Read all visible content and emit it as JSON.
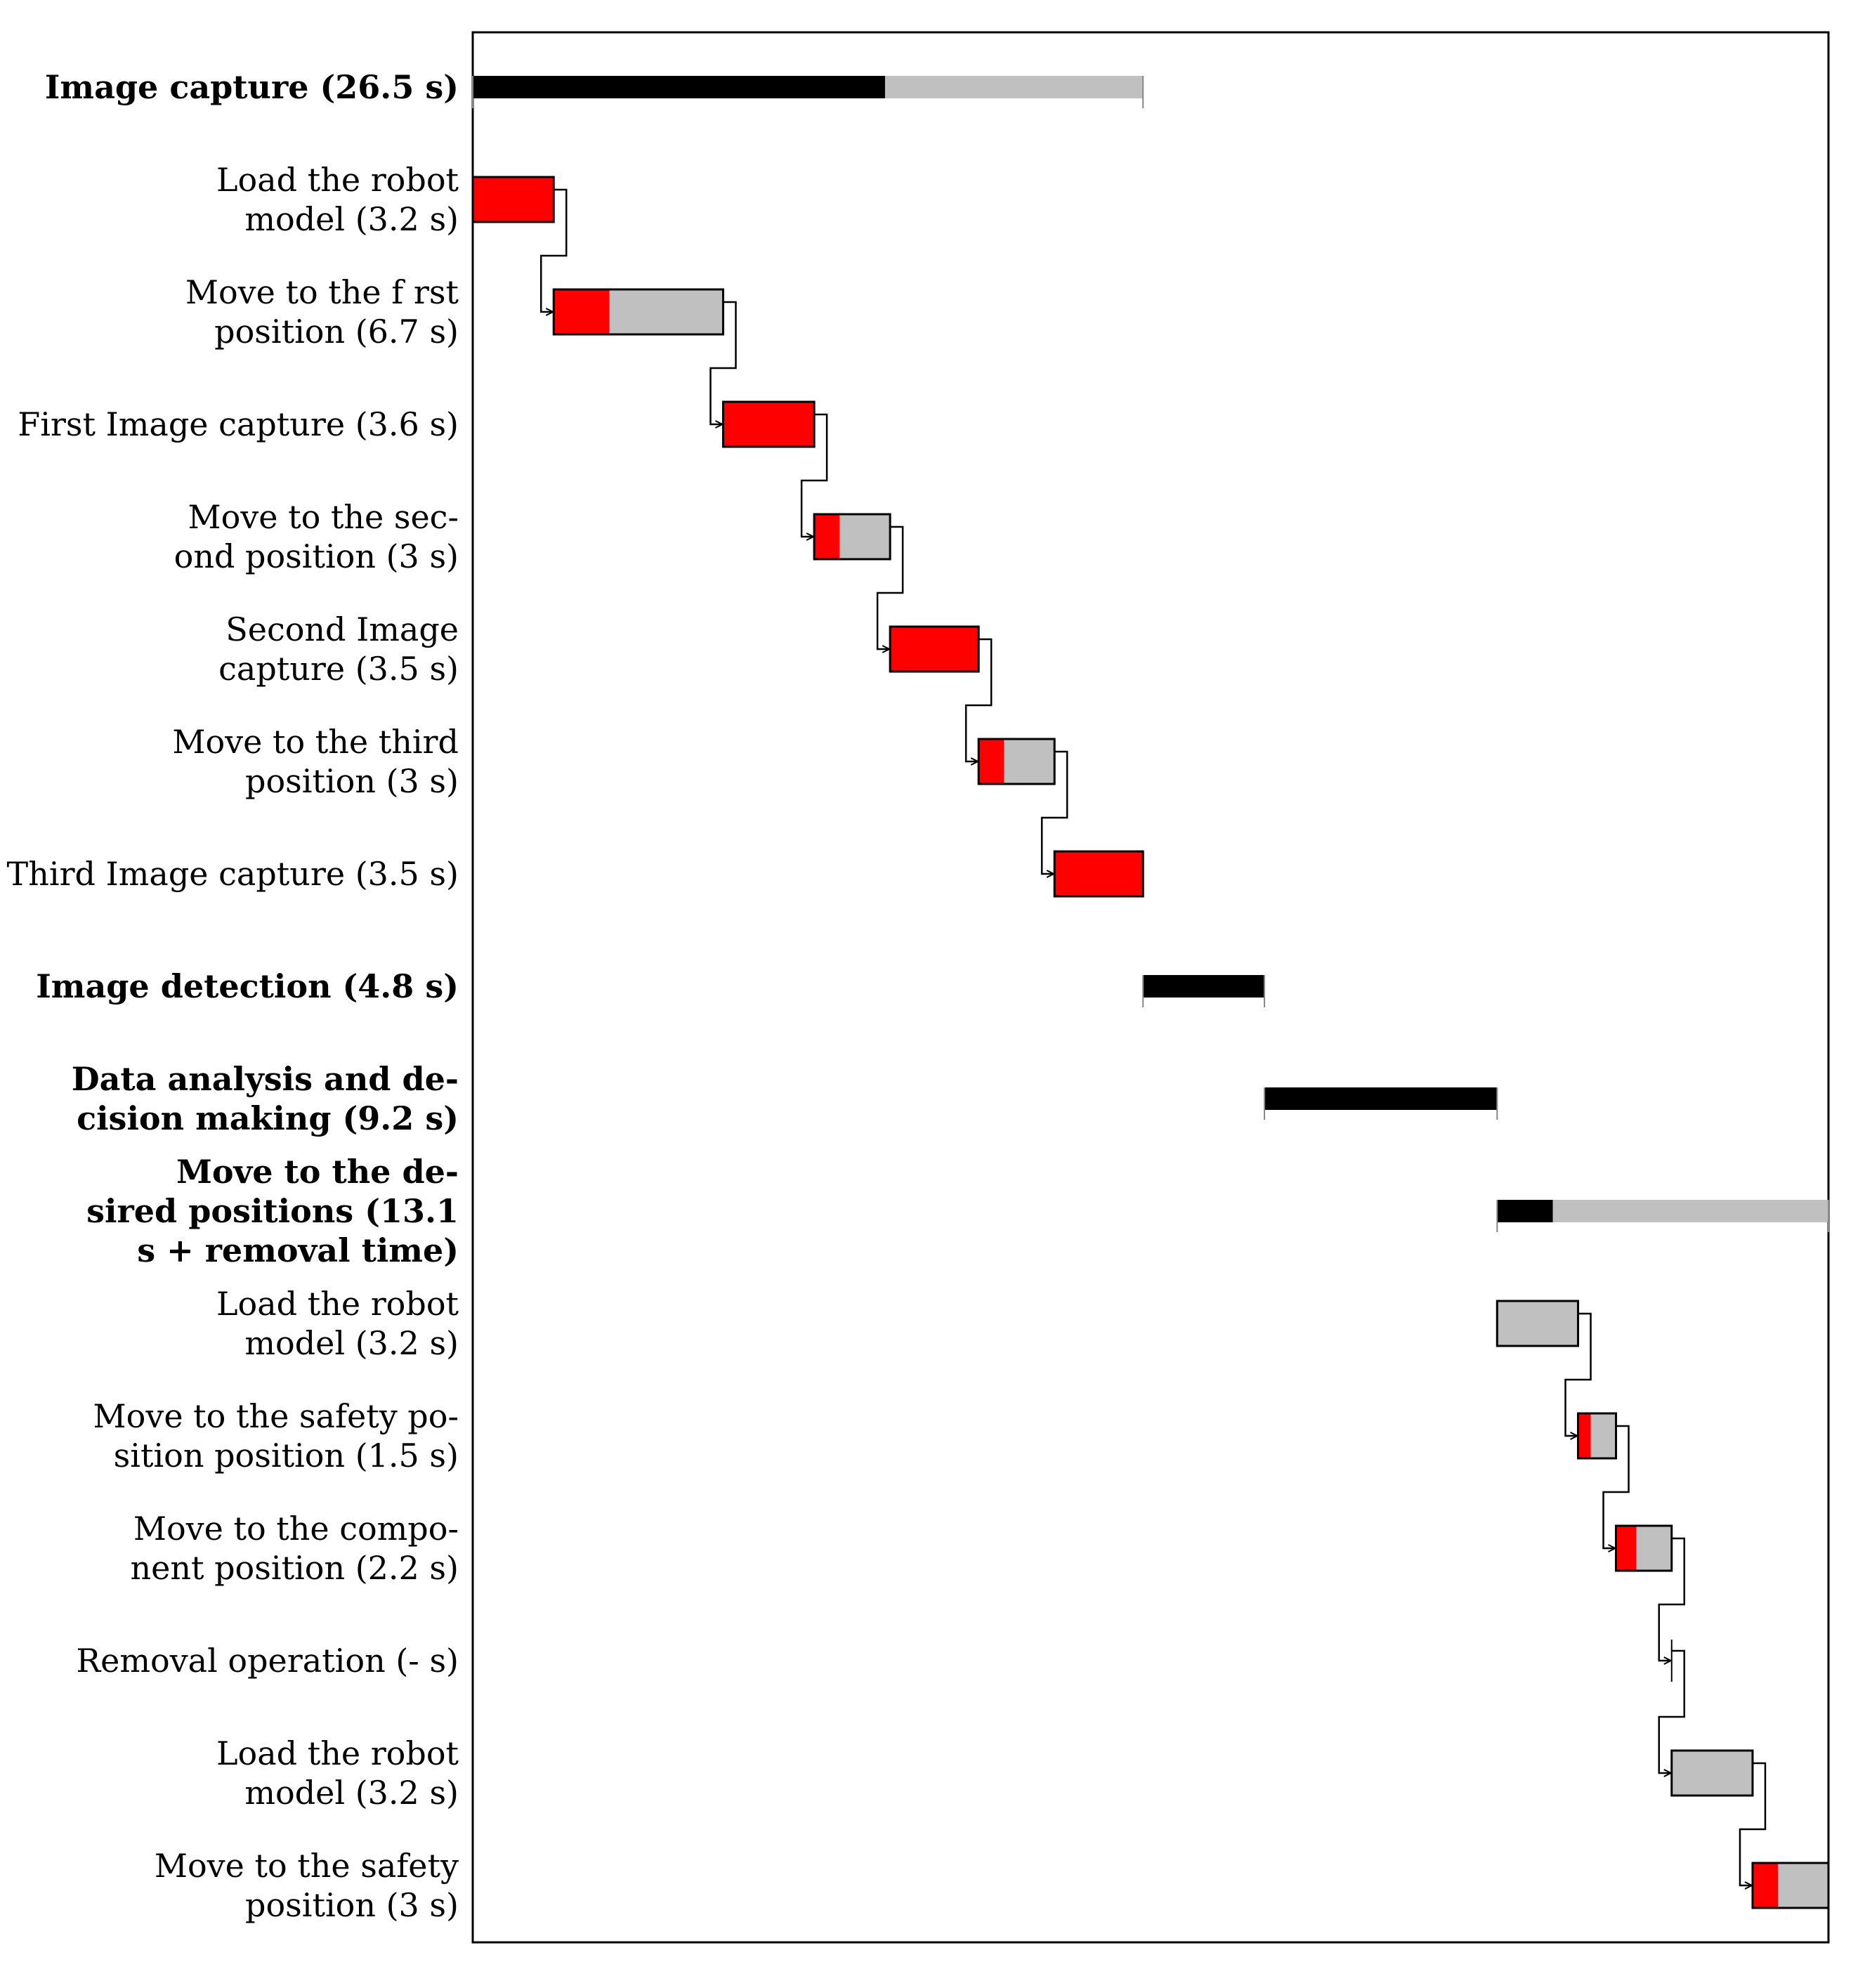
{
  "chart_data": {
    "type": "gantt",
    "title": "",
    "x_unit": "s",
    "x_range": [
      0,
      53.6
    ],
    "legend": [],
    "colors": {
      "phase_done": "#000000",
      "phase_remaining": "#c0c0c0",
      "task_done": "#ff0000",
      "task_remaining": "#c0c0c0",
      "frame": "#000000"
    },
    "tasks": [
      {
        "id": "t0",
        "kind": "phase",
        "label_lines": [
          "Image capture (26.5 s)"
        ],
        "start": 0,
        "end": 26.5,
        "done": 16.3
      },
      {
        "id": "t1",
        "kind": "task",
        "label_lines": [
          "Load the robot",
          "model (3.2 s)"
        ],
        "start": 0,
        "end": 3.2,
        "done": 3.2
      },
      {
        "id": "t2",
        "kind": "task",
        "label_lines": [
          "Move to the f rst",
          "position (6.7 s)"
        ],
        "start": 3.2,
        "end": 9.9,
        "done": 2.2
      },
      {
        "id": "t3",
        "kind": "task",
        "label_lines": [
          "First Image capture (3.6 s)"
        ],
        "start": 9.9,
        "end": 13.5,
        "done": 3.6
      },
      {
        "id": "t4",
        "kind": "task",
        "label_lines": [
          "Move to the sec-",
          "ond position (3 s)"
        ],
        "start": 13.5,
        "end": 16.5,
        "done": 1.0
      },
      {
        "id": "t5",
        "kind": "task",
        "label_lines": [
          "Second Image",
          "capture (3.5 s)"
        ],
        "start": 16.5,
        "end": 20.0,
        "done": 3.5
      },
      {
        "id": "t6",
        "kind": "task",
        "label_lines": [
          "Move to the third",
          "position (3 s)"
        ],
        "start": 20.0,
        "end": 23.0,
        "done": 1.0
      },
      {
        "id": "t7",
        "kind": "task",
        "label_lines": [
          "Third Image capture (3.5 s)"
        ],
        "start": 23.0,
        "end": 26.5,
        "done": 3.5
      },
      {
        "id": "t8",
        "kind": "phase",
        "label_lines": [
          "Image detection (4.8 s)"
        ],
        "start": 26.5,
        "end": 31.3,
        "done": 4.8
      },
      {
        "id": "t9",
        "kind": "phase",
        "label_lines": [
          "Data analysis and de-",
          "cision making (9.2 s)"
        ],
        "start": 31.3,
        "end": 40.5,
        "done": 9.2
      },
      {
        "id": "t10",
        "kind": "phase",
        "label_lines": [
          "Move to the de-",
          "sired positions (13.1",
          "s + removal time)"
        ],
        "start": 40.5,
        "end": 53.6,
        "done": 2.2
      },
      {
        "id": "t11",
        "kind": "task",
        "label_lines": [
          "Load the robot",
          "model (3.2 s)"
        ],
        "start": 40.5,
        "end": 43.7,
        "done": 0
      },
      {
        "id": "t12",
        "kind": "task",
        "label_lines": [
          "Move to the safety po-",
          "sition position (1.5 s)"
        ],
        "start": 43.7,
        "end": 45.2,
        "done": 0.5
      },
      {
        "id": "t13",
        "kind": "task",
        "label_lines": [
          "Move to the compo-",
          "nent position (2.2 s)"
        ],
        "start": 45.2,
        "end": 47.4,
        "done": 0.8
      },
      {
        "id": "t14",
        "kind": "milestone",
        "label_lines": [
          "Removal operation (- s)"
        ],
        "start": 47.4,
        "end": 47.4,
        "done": 0
      },
      {
        "id": "t15",
        "kind": "task",
        "label_lines": [
          "Load the robot",
          "model (3.2 s)"
        ],
        "start": 47.4,
        "end": 50.6,
        "done": 0
      },
      {
        "id": "t16",
        "kind": "task",
        "label_lines": [
          "Move to the safety",
          "position (3 s)"
        ],
        "start": 50.6,
        "end": 53.6,
        "done": 1.0
      }
    ],
    "links": [
      [
        "t1",
        "t2"
      ],
      [
        "t2",
        "t3"
      ],
      [
        "t3",
        "t4"
      ],
      [
        "t4",
        "t5"
      ],
      [
        "t5",
        "t6"
      ],
      [
        "t6",
        "t7"
      ],
      [
        "t11",
        "t12"
      ],
      [
        "t12",
        "t13"
      ],
      [
        "t13",
        "t14"
      ],
      [
        "t14",
        "t15"
      ],
      [
        "t15",
        "t16"
      ]
    ]
  }
}
